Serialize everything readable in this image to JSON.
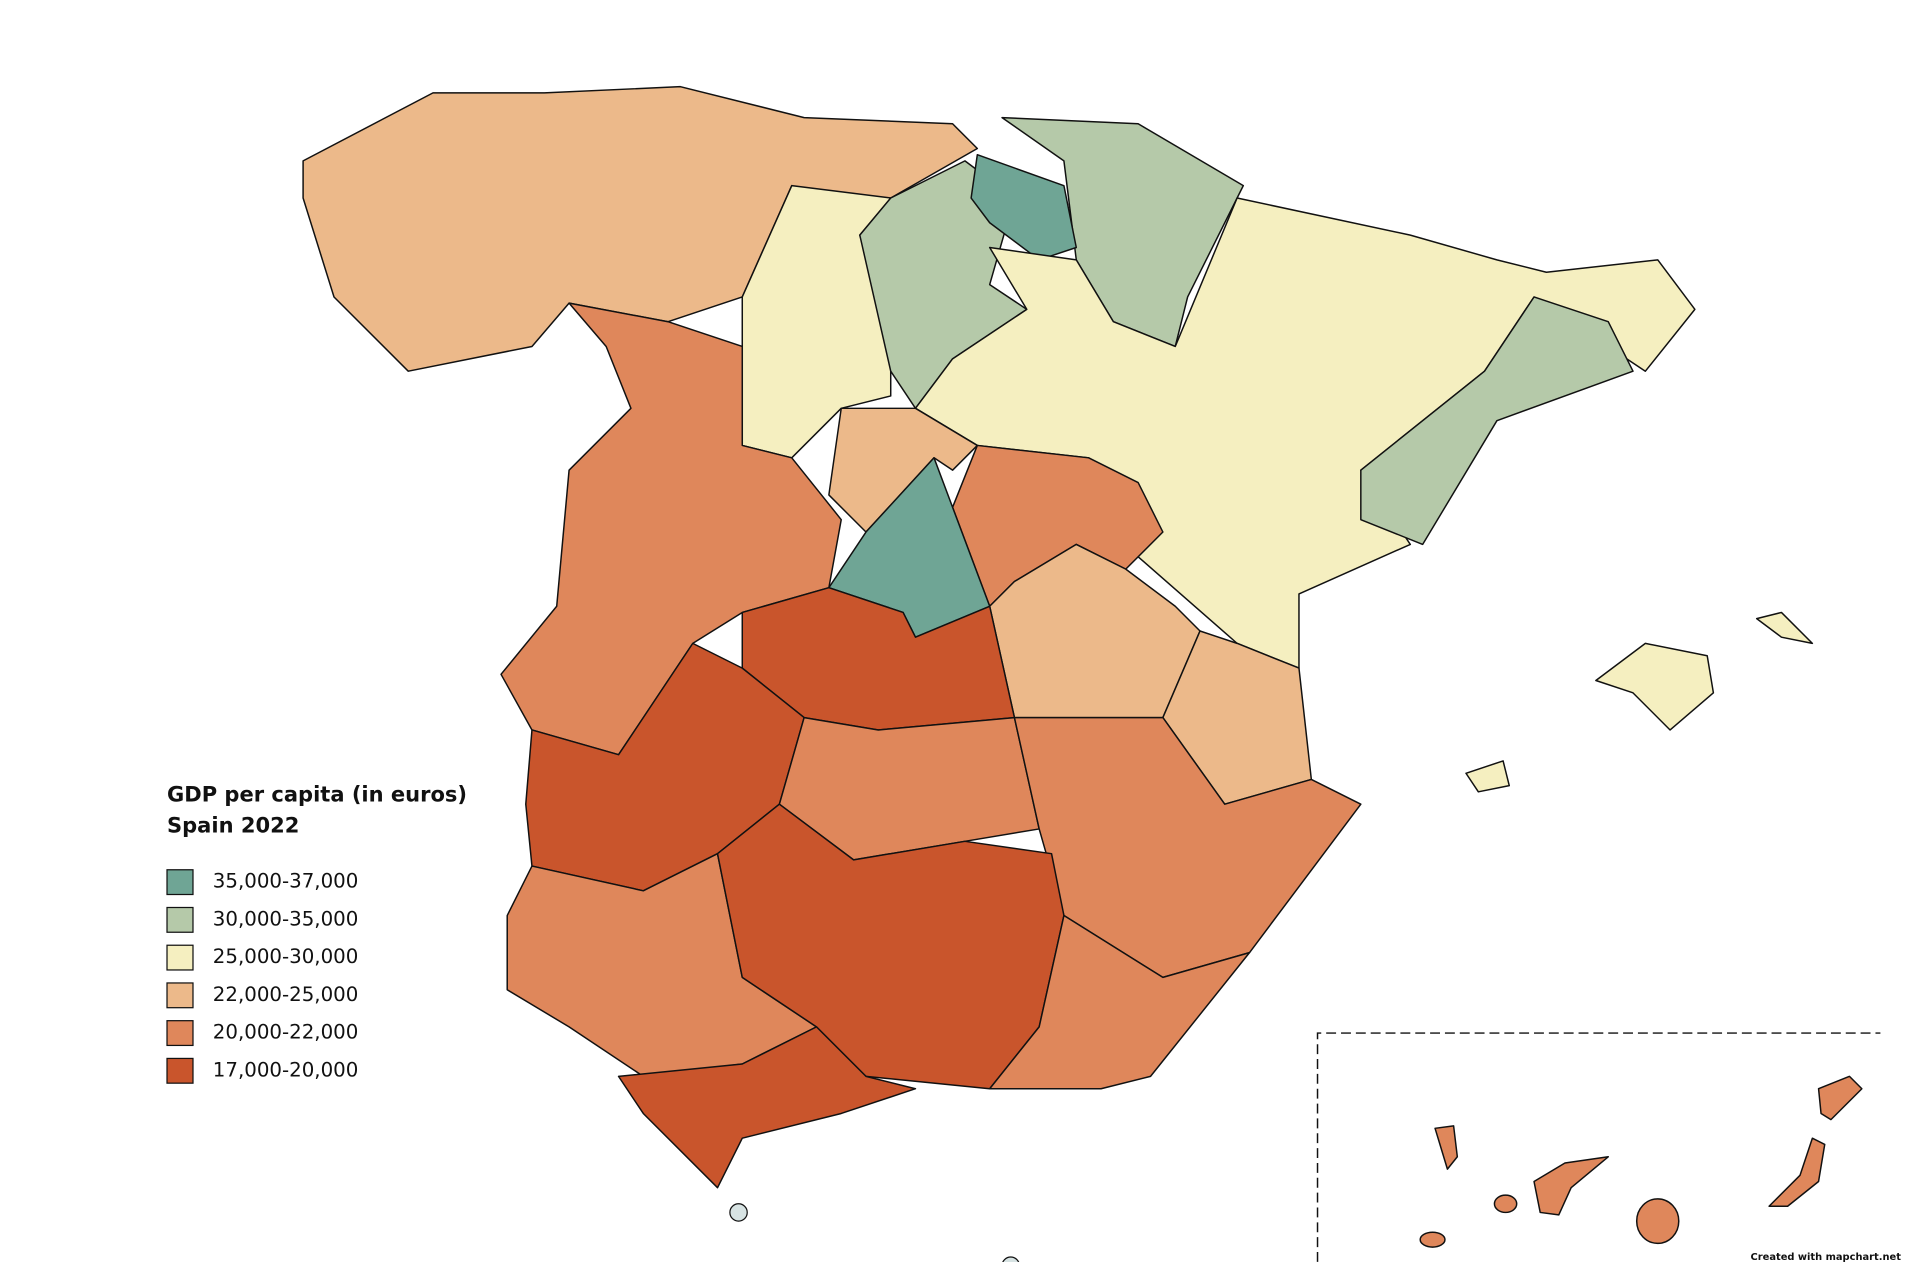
{
  "legend": {
    "title": "GDP per capita (in euros)",
    "subtitle": "Spain 2022",
    "items": [
      {
        "label": "35,000-37,000",
        "color": "#6fa595"
      },
      {
        "label": "30,000-35,000",
        "color": "#b5c9a9"
      },
      {
        "label": "25,000-30,000",
        "color": "#f5efc0"
      },
      {
        "label": "22,000-25,000",
        "color": "#ecb98a"
      },
      {
        "label": "20,000-22,000",
        "color": "#df875b"
      },
      {
        "label": "17,000-20,000",
        "color": "#c9552c"
      }
    ]
  },
  "credit": "Created with mapchart.net"
}
